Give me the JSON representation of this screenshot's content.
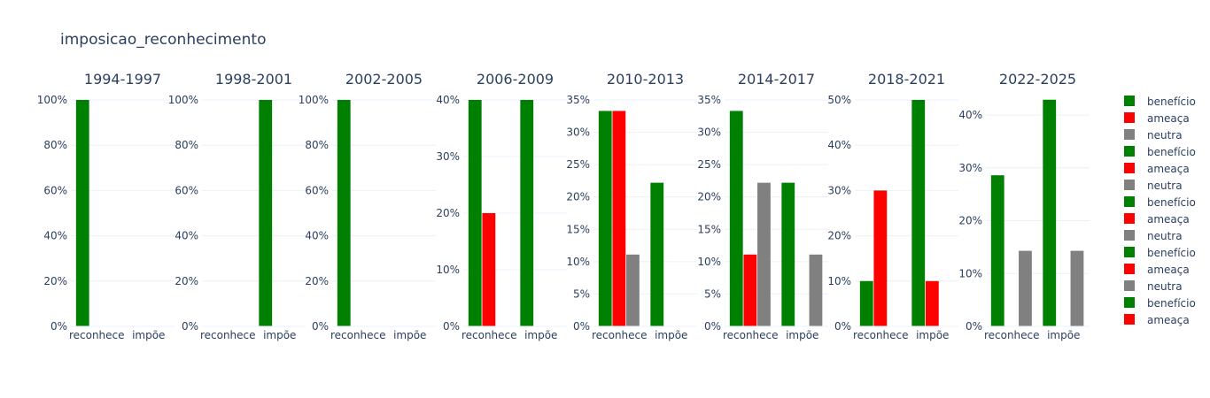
{
  "chart_data": {
    "type": "bar",
    "title": "imposicao_reconhecimento",
    "categories": [
      "reconhece",
      "impõe"
    ],
    "colors": {
      "benefício": "#008000",
      "ameaça": "#ff0000",
      "neutra": "#808080"
    },
    "grid": true,
    "legend_position": "right",
    "legend": [
      {
        "label": "benefício",
        "color": "#008000"
      },
      {
        "label": "ameaça",
        "color": "#ff0000"
      },
      {
        "label": "neutra",
        "color": "#808080"
      },
      {
        "label": "benefício",
        "color": "#008000"
      },
      {
        "label": "ameaça",
        "color": "#ff0000"
      },
      {
        "label": "neutra",
        "color": "#808080"
      },
      {
        "label": "benefício",
        "color": "#008000"
      },
      {
        "label": "ameaça",
        "color": "#ff0000"
      },
      {
        "label": "neutra",
        "color": "#808080"
      },
      {
        "label": "benefício",
        "color": "#008000"
      },
      {
        "label": "ameaça",
        "color": "#ff0000"
      },
      {
        "label": "neutra",
        "color": "#808080"
      },
      {
        "label": "benefício",
        "color": "#008000"
      },
      {
        "label": "ameaça",
        "color": "#ff0000"
      }
    ],
    "panels": [
      {
        "title": "1994-1997",
        "ylim": [
          0,
          1.0
        ],
        "yticks": [
          0,
          0.2,
          0.4,
          0.6,
          0.8,
          1.0
        ],
        "ytick_labels": [
          "0%",
          "20%",
          "40%",
          "60%",
          "80%",
          "100%"
        ],
        "series": [
          {
            "name": "benefício",
            "values": [
              1.0,
              0
            ]
          },
          {
            "name": "ameaça",
            "values": [
              0,
              0
            ]
          },
          {
            "name": "neutra",
            "values": [
              0,
              0
            ]
          }
        ]
      },
      {
        "title": "1998-2001",
        "ylim": [
          0,
          1.0
        ],
        "yticks": [
          0,
          0.2,
          0.4,
          0.6,
          0.8,
          1.0
        ],
        "ytick_labels": [
          "0%",
          "20%",
          "40%",
          "60%",
          "80%",
          "100%"
        ],
        "series": [
          {
            "name": "benefício",
            "values": [
              0,
              1.0
            ]
          },
          {
            "name": "ameaça",
            "values": [
              0,
              0
            ]
          },
          {
            "name": "neutra",
            "values": [
              0,
              0
            ]
          }
        ]
      },
      {
        "title": "2002-2005",
        "ylim": [
          0,
          1.0
        ],
        "yticks": [
          0,
          0.2,
          0.4,
          0.6,
          0.8,
          1.0
        ],
        "ytick_labels": [
          "0%",
          "20%",
          "40%",
          "60%",
          "80%",
          "100%"
        ],
        "series": [
          {
            "name": "benefício",
            "values": [
              1.0,
              0
            ]
          },
          {
            "name": "ameaça",
            "values": [
              0,
              0
            ]
          },
          {
            "name": "neutra",
            "values": [
              0,
              0
            ]
          }
        ]
      },
      {
        "title": "2006-2009",
        "ylim": [
          0,
          0.4
        ],
        "yticks": [
          0,
          0.1,
          0.2,
          0.3,
          0.4
        ],
        "ytick_labels": [
          "0%",
          "10%",
          "20%",
          "30%",
          "40%"
        ],
        "series": [
          {
            "name": "benefício",
            "values": [
              0.4,
              0.4
            ]
          },
          {
            "name": "ameaça",
            "values": [
              0.2,
              0
            ]
          },
          {
            "name": "neutra",
            "values": [
              0,
              0
            ]
          }
        ]
      },
      {
        "title": "2010-2013",
        "ylim": [
          0,
          0.35
        ],
        "yticks": [
          0,
          0.05,
          0.1,
          0.15,
          0.2,
          0.25,
          0.3,
          0.35
        ],
        "ytick_labels": [
          "0%",
          "5%",
          "10%",
          "15%",
          "20%",
          "25%",
          "30%",
          "35%"
        ],
        "series": [
          {
            "name": "benefício",
            "values": [
              0.333,
              0.222
            ]
          },
          {
            "name": "ameaça",
            "values": [
              0.333,
              0
            ]
          },
          {
            "name": "neutra",
            "values": [
              0.111,
              0
            ]
          }
        ]
      },
      {
        "title": "2014-2017",
        "ylim": [
          0,
          0.35
        ],
        "yticks": [
          0,
          0.05,
          0.1,
          0.15,
          0.2,
          0.25,
          0.3,
          0.35
        ],
        "ytick_labels": [
          "0%",
          "5%",
          "10%",
          "15%",
          "20%",
          "25%",
          "30%",
          "35%"
        ],
        "series": [
          {
            "name": "benefício",
            "values": [
              0.333,
              0.222
            ]
          },
          {
            "name": "ameaça",
            "values": [
              0.111,
              0
            ]
          },
          {
            "name": "neutra",
            "values": [
              0.222,
              0.111
            ]
          }
        ]
      },
      {
        "title": "2018-2021",
        "ylim": [
          0,
          0.5
        ],
        "yticks": [
          0,
          0.1,
          0.2,
          0.3,
          0.4,
          0.5
        ],
        "ytick_labels": [
          "0%",
          "10%",
          "20%",
          "30%",
          "40%",
          "50%"
        ],
        "series": [
          {
            "name": "benefício",
            "values": [
              0.1,
              0.5
            ]
          },
          {
            "name": "ameaça",
            "values": [
              0.3,
              0.1
            ]
          },
          {
            "name": "neutra",
            "values": [
              0,
              0
            ]
          }
        ]
      },
      {
        "title": "2022-2025",
        "ylim": [
          0,
          0.4286
        ],
        "yticks": [
          0,
          0.1,
          0.2,
          0.3,
          0.4
        ],
        "ytick_labels": [
          "0%",
          "10%",
          "20%",
          "30%",
          "40%"
        ],
        "series": [
          {
            "name": "benefício",
            "values": [
              0.286,
              0.429
            ]
          },
          {
            "name": "ameaça",
            "values": [
              0,
              0
            ]
          },
          {
            "name": "neutra",
            "values": [
              0.143,
              0.143
            ]
          }
        ]
      }
    ]
  }
}
